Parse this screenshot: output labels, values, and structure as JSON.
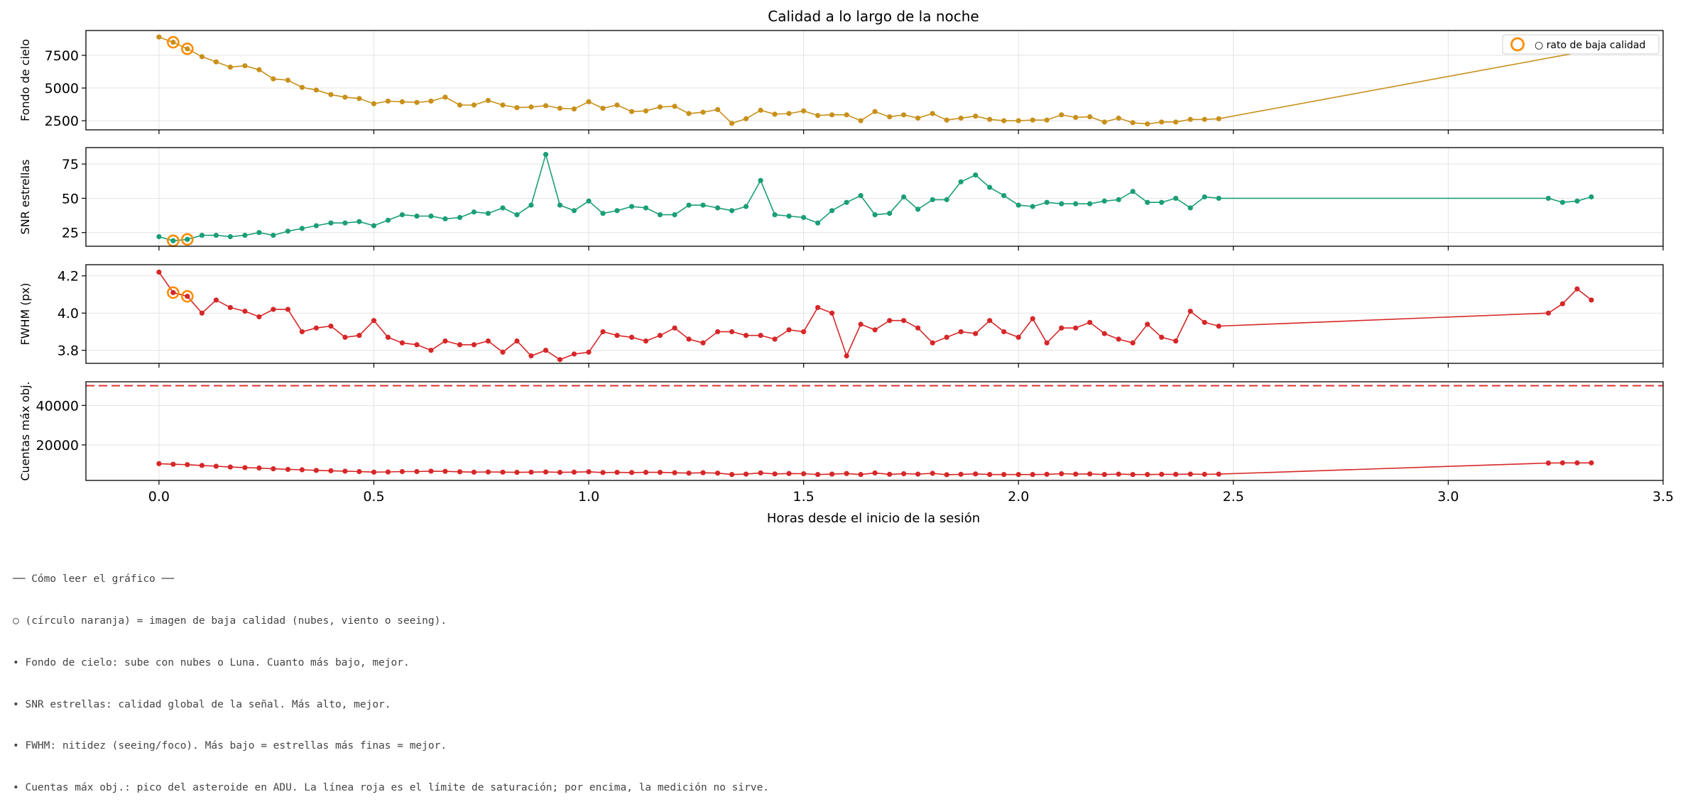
{
  "chart_data": {
    "type": "line",
    "title": "Calidad a lo largo de la noche",
    "xlabel": "Horas desde el inicio de la sesión",
    "xlim": [
      -0.17,
      3.5
    ],
    "xticks": [
      "0.0",
      "0.5",
      "1.0",
      "1.5",
      "2.0",
      "2.5",
      "3.0",
      "3.5"
    ],
    "x": [
      0.0,
      0.033,
      0.066,
      0.1,
      0.133,
      0.166,
      0.2,
      0.233,
      0.266,
      0.3,
      0.333,
      0.366,
      0.4,
      0.433,
      0.466,
      0.5,
      0.533,
      0.566,
      0.6,
      0.633,
      0.666,
      0.7,
      0.733,
      0.766,
      0.8,
      0.833,
      0.866,
      0.9,
      0.933,
      0.966,
      1.0,
      1.033,
      1.066,
      1.1,
      1.133,
      1.166,
      1.2,
      1.233,
      1.266,
      1.3,
      1.333,
      1.366,
      1.4,
      1.433,
      1.466,
      1.5,
      1.533,
      1.566,
      1.6,
      1.633,
      1.666,
      1.7,
      1.733,
      1.766,
      1.8,
      1.833,
      1.866,
      1.9,
      1.933,
      1.966,
      2.0,
      2.033,
      2.066,
      2.1,
      2.133,
      2.166,
      2.2,
      2.233,
      2.266,
      2.3,
      2.333,
      2.366,
      2.4,
      2.433,
      2.466,
      3.233,
      3.266,
      3.3,
      3.333
    ],
    "panels": [
      {
        "ylabel": "Fondo de cielo",
        "color": "#c8901a",
        "ylim": [
          1800,
          9400
        ],
        "yticks": [
          2500,
          5000,
          7500
        ],
        "ytick_labels": [
          "2500",
          "5000",
          "7500"
        ],
        "values": [
          8900,
          8500,
          8000,
          7400,
          7000,
          6600,
          6700,
          6400,
          5700,
          5600,
          5050,
          4850,
          4500,
          4300,
          4200,
          3800,
          4000,
          3950,
          3900,
          4000,
          4300,
          3700,
          3700,
          4050,
          3700,
          3500,
          3550,
          3650,
          3450,
          3400,
          3950,
          3450,
          3700,
          3200,
          3250,
          3550,
          3600,
          3050,
          3150,
          3350,
          2300,
          2650,
          3300,
          3000,
          3050,
          3250,
          2900,
          2950,
          2950,
          2500,
          3200,
          2800,
          2950,
          2700,
          3050,
          2550,
          2700,
          2850,
          2600,
          2500,
          2500,
          2550,
          2550,
          2950,
          2750,
          2800,
          2400,
          2700,
          2350,
          2250,
          2400,
          2400,
          2600,
          2600,
          2650,
          null,
          null,
          null,
          null
        ],
        "end_point": {
          "x": 3.3,
          "y": 7700
        },
        "low_quality_x": [
          0.033,
          0.066
        ],
        "low_quality_y": [
          8500,
          8000
        ],
        "legend": "○ rato de baja calidad"
      },
      {
        "ylabel": "SNR estrellas",
        "color": "#1a9e77",
        "ylim": [
          15,
          87
        ],
        "yticks": [
          25,
          50,
          75
        ],
        "ytick_labels": [
          "25",
          "50",
          "75"
        ],
        "values": [
          22,
          19,
          20,
          23,
          23,
          22,
          23,
          25,
          23,
          26,
          28,
          30,
          32,
          32,
          33,
          30,
          34,
          38,
          37,
          37,
          35,
          36,
          40,
          39,
          43,
          38,
          45,
          82,
          45,
          41,
          48,
          39,
          41,
          44,
          43,
          38,
          38,
          45,
          45,
          43,
          41,
          44,
          63,
          38,
          37,
          36,
          32,
          41,
          47,
          52,
          38,
          39,
          51,
          42,
          49,
          49,
          62,
          67,
          58,
          52,
          45,
          44,
          47,
          46,
          46,
          46,
          48,
          49,
          55,
          47,
          47,
          50,
          43,
          51,
          50,
          50,
          47,
          48,
          51
        ],
        "low_quality_x": [
          0.033,
          0.066
        ],
        "low_quality_y": [
          19,
          20
        ]
      },
      {
        "ylabel": "FWHM (px)",
        "color": "#d62728",
        "ylim": [
          3.73,
          4.26
        ],
        "yticks": [
          3.8,
          4.0,
          4.2
        ],
        "ytick_labels": [
          "3.8",
          "4.0",
          "4.2"
        ],
        "values": [
          4.22,
          4.11,
          4.09,
          4.0,
          4.07,
          4.03,
          4.01,
          3.98,
          4.02,
          4.02,
          3.9,
          3.92,
          3.93,
          3.87,
          3.88,
          3.96,
          3.87,
          3.84,
          3.83,
          3.8,
          3.85,
          3.83,
          3.83,
          3.85,
          3.79,
          3.85,
          3.77,
          3.8,
          3.75,
          3.78,
          3.79,
          3.9,
          3.88,
          3.87,
          3.85,
          3.88,
          3.92,
          3.86,
          3.84,
          3.9,
          3.9,
          3.88,
          3.88,
          3.86,
          3.91,
          3.9,
          4.03,
          4.0,
          3.77,
          3.94,
          3.91,
          3.96,
          3.96,
          3.92,
          3.84,
          3.87,
          3.9,
          3.89,
          3.96,
          3.9,
          3.87,
          3.97,
          3.84,
          3.92,
          3.92,
          3.95,
          3.89,
          3.86,
          3.84,
          3.94,
          3.87,
          3.85,
          4.01,
          3.95,
          3.93,
          4.0,
          4.05,
          4.13,
          4.07
        ],
        "low_quality_x": [
          0.033,
          0.066
        ],
        "low_quality_y": [
          4.11,
          4.09
        ]
      },
      {
        "ylabel": "Cuentas máx obj.",
        "color": "#d62728",
        "ylim": [
          2000,
          52000
        ],
        "yticks": [
          20000,
          40000
        ],
        "ytick_labels": [
          "20000",
          "40000"
        ],
        "saturation_limit": 50000,
        "saturation_color": "#e03030",
        "values": [
          10500,
          10200,
          10000,
          9600,
          9200,
          8800,
          8500,
          8300,
          7900,
          7600,
          7400,
          7100,
          6900,
          6700,
          6500,
          6200,
          6300,
          6500,
          6500,
          6700,
          6600,
          6400,
          6200,
          6300,
          6200,
          6100,
          6200,
          6300,
          6100,
          6200,
          6400,
          6000,
          6100,
          6000,
          6100,
          6100,
          5900,
          5700,
          5900,
          5700,
          5000,
          5200,
          5800,
          5300,
          5500,
          5400,
          5000,
          5200,
          5500,
          5000,
          5800,
          5100,
          5400,
          5200,
          5600,
          4900,
          5100,
          5300,
          5000,
          5000,
          5000,
          5000,
          5100,
          5400,
          5200,
          5300,
          5000,
          5200,
          5000,
          5000,
          5100,
          5100,
          5200,
          5100,
          5200,
          10800,
          10900,
          10900,
          10900
        ]
      }
    ]
  },
  "notes": {
    "title": "── Cómo leer el gráfico ──",
    "line1": "○ (círculo naranja) = imagen de baja calidad (nubes, viento o seeing).",
    "line2": "• Fondo de cielo: sube con nubes o Luna. Cuanto más bajo, mejor.",
    "line3": "• SNR estrellas: calidad global de la señal. Más alto, mejor.",
    "line4": "• FWHM: nitidez (seeing/foco). Más bajo = estrellas más finas = mejor.",
    "line5": "• Cuentas máx obj.: pico del asteroide en ADU. La línea roja es el límite de saturación; por encima, la medición no sirve."
  }
}
